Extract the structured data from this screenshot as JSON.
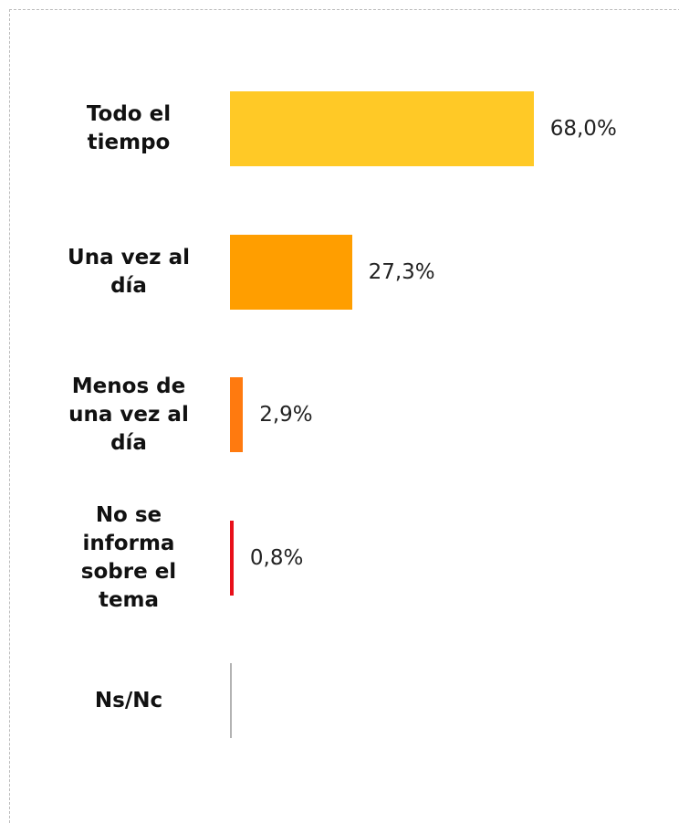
{
  "chart_data": {
    "type": "barh",
    "categories": [
      "Todo el tiempo",
      "Una vez al día",
      "Menos de una vez al día",
      "No se informa sobre el tema",
      "Ns/Nc"
    ],
    "values": [
      68.0,
      27.3,
      2.9,
      0.8,
      0.5
    ],
    "value_labels": [
      "68,0%",
      "27,3%",
      "2,9%",
      "0,8%",
      null
    ],
    "colors": [
      "#FFC926",
      "#FF9E00",
      "#FF7A0F",
      "#E8101A",
      "#B3B3B3"
    ],
    "xlim": [
      0,
      75
    ]
  }
}
